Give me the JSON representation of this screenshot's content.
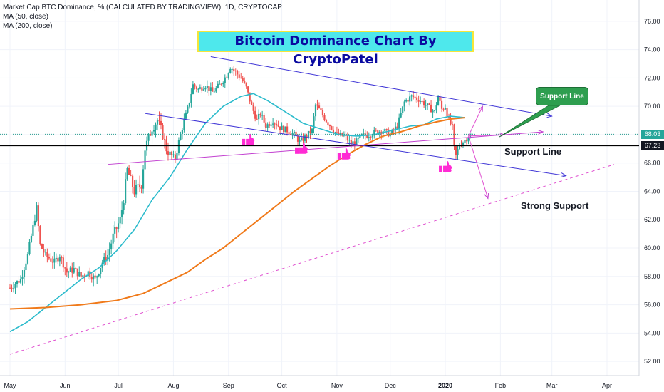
{
  "chart_data": {
    "type": "candlestick",
    "symbol_line": "Market Cap BTC Dominance, % (CALCULATED BY TRADINGVIEW), 1D, CRYPTOCAP",
    "indicators": [
      "MA (50, close)",
      "MA (200, close)"
    ],
    "title": "Bitcoin Dominance Chart By CryptoPatel",
    "ylim": [
      51,
      77.5
    ],
    "y_ticks": [
      "52.00",
      "54.00",
      "56.00",
      "58.00",
      "60.00",
      "62.00",
      "64.00",
      "66.00",
      "68.00",
      "70.00",
      "72.00",
      "74.00",
      "76.00"
    ],
    "x_ticks": [
      "May",
      "Jun",
      "Jul",
      "Aug",
      "Sep",
      "Oct",
      "Nov",
      "Dec",
      "2020",
      "Feb",
      "Mar",
      "Apr"
    ],
    "x_range_days": [
      0,
      340
    ],
    "x_tick_days": [
      0,
      31,
      61,
      92,
      123,
      153,
      184,
      214,
      245,
      276,
      305,
      336
    ],
    "price_path": [
      [
        0,
        57.2
      ],
      [
        6,
        57.8
      ],
      [
        10,
        59.5
      ],
      [
        13,
        61.5
      ],
      [
        15,
        62.8
      ],
      [
        17,
        60.2
      ],
      [
        20,
        59.5
      ],
      [
        25,
        59.0
      ],
      [
        28,
        59.5
      ],
      [
        32,
        58.3
      ],
      [
        36,
        58.5
      ],
      [
        40,
        58.0
      ],
      [
        44,
        58.3
      ],
      [
        48,
        57.8
      ],
      [
        52,
        59.0
      ],
      [
        55,
        59.5
      ],
      [
        58,
        60.8
      ],
      [
        62,
        62.0
      ],
      [
        64,
        63.5
      ],
      [
        66,
        65.5
      ],
      [
        70,
        64.0
      ],
      [
        74,
        64.5
      ],
      [
        76,
        67.0
      ],
      [
        80,
        68.5
      ],
      [
        83,
        69.0
      ],
      [
        86,
        68.0
      ],
      [
        88,
        67.0
      ],
      [
        91,
        66.5
      ],
      [
        93,
        66.3
      ],
      [
        95,
        67.5
      ],
      [
        98,
        69.0
      ],
      [
        100,
        69.8
      ],
      [
        103,
        71.5
      ],
      [
        106,
        71.2
      ],
      [
        110,
        71.5
      ],
      [
        114,
        71.0
      ],
      [
        118,
        71.5
      ],
      [
        122,
        72.2
      ],
      [
        124,
        72.8
      ],
      [
        127,
        72.4
      ],
      [
        130,
        72.0
      ],
      [
        133,
        71.3
      ],
      [
        136,
        70.0
      ],
      [
        139,
        69.0
      ],
      [
        141,
        69.5
      ],
      [
        144,
        68.6
      ],
      [
        148,
        69.0
      ],
      [
        152,
        68.5
      ],
      [
        156,
        68.3
      ],
      [
        160,
        68.0
      ],
      [
        163,
        67.5
      ],
      [
        166,
        67.8
      ],
      [
        170,
        68.3
      ],
      [
        172,
        70.1
      ],
      [
        175,
        69.6
      ],
      [
        178,
        69.0
      ],
      [
        181,
        68.5
      ],
      [
        184,
        68.0
      ],
      [
        188,
        67.9
      ],
      [
        192,
        67.4
      ],
      [
        195,
        67.5
      ],
      [
        198,
        67.9
      ],
      [
        202,
        68.0
      ],
      [
        206,
        68.2
      ],
      [
        210,
        68.3
      ],
      [
        214,
        68.0
      ],
      [
        218,
        68.6
      ],
      [
        222,
        70.3
      ],
      [
        226,
        70.7
      ],
      [
        230,
        70.5
      ],
      [
        233,
        70.2
      ],
      [
        236,
        69.9
      ],
      [
        239,
        69.6
      ],
      [
        241,
        70.7
      ],
      [
        243,
        69.8
      ],
      [
        245,
        70.0
      ],
      [
        247,
        69.0
      ],
      [
        249,
        68.5
      ],
      [
        250,
        67.0
      ],
      [
        251,
        66.5
      ],
      [
        253,
        67.3
      ],
      [
        256,
        67.6
      ],
      [
        258,
        67.9
      ],
      [
        260,
        68.0
      ]
    ],
    "price_rng": [
      0.5,
      57.5,
      89.5,
      60.0
    ],
    "ma50": [
      [
        0,
        54.1
      ],
      [
        10,
        54.8
      ],
      [
        20,
        55.8
      ],
      [
        30,
        56.8
      ],
      [
        40,
        57.8
      ],
      [
        50,
        58.6
      ],
      [
        60,
        59.8
      ],
      [
        70,
        61.3
      ],
      [
        80,
        63.4
      ],
      [
        90,
        65.0
      ],
      [
        100,
        67.0
      ],
      [
        110,
        68.8
      ],
      [
        120,
        70.0
      ],
      [
        130,
        70.7
      ],
      [
        137,
        70.9
      ],
      [
        145,
        70.4
      ],
      [
        155,
        69.6
      ],
      [
        165,
        68.8
      ],
      [
        175,
        68.4
      ],
      [
        185,
        68.0
      ],
      [
        195,
        67.9
      ],
      [
        205,
        68.0
      ],
      [
        215,
        68.3
      ],
      [
        225,
        68.6
      ],
      [
        233,
        68.7
      ],
      [
        240,
        69.1
      ],
      [
        248,
        69.3
      ],
      [
        256,
        69.2
      ]
    ],
    "ma200": [
      [
        0,
        55.7
      ],
      [
        20,
        55.8
      ],
      [
        40,
        56.0
      ],
      [
        60,
        56.3
      ],
      [
        75,
        56.8
      ],
      [
        90,
        57.7
      ],
      [
        100,
        58.3
      ],
      [
        110,
        59.2
      ],
      [
        120,
        60.0
      ],
      [
        130,
        61.0
      ],
      [
        140,
        62.0
      ],
      [
        150,
        63.0
      ],
      [
        160,
        64.0
      ],
      [
        170,
        64.9
      ],
      [
        180,
        65.8
      ],
      [
        190,
        66.6
      ],
      [
        200,
        67.3
      ],
      [
        210,
        67.9
      ],
      [
        220,
        68.2
      ],
      [
        230,
        68.6
      ],
      [
        240,
        68.9
      ],
      [
        248,
        69.1
      ],
      [
        256,
        69.2
      ]
    ],
    "trendlines": [
      {
        "name": "upper-channel",
        "from": [
          113,
          73.5
        ],
        "to": [
          305,
          69.3
        ],
        "color": "#3f35d6",
        "style": "solid",
        "arrow": true
      },
      {
        "name": "lower-channel",
        "from": [
          76,
          69.5
        ],
        "to": [
          313,
          65.1
        ],
        "color": "#3f35d6",
        "style": "solid",
        "arrow": true
      },
      {
        "name": "rising-support",
        "from": [
          55,
          65.9
        ],
        "to": [
          300,
          68.2
        ],
        "color": "#c240d0",
        "style": "solid",
        "arrow": true
      },
      {
        "name": "long-term-support",
        "from": [
          0,
          52.5
        ],
        "to": [
          340,
          65.9
        ],
        "color": "#e050d0",
        "style": "dashed",
        "arrow": false
      }
    ],
    "horizontal_lines": [
      {
        "name": "black-support",
        "y": 67.23,
        "color": "#000000"
      },
      {
        "name": "dotted-last-price",
        "y": 68.03,
        "color": "#2a9d8f"
      }
    ],
    "projection_arrows": [
      {
        "from": [
          258,
          67.9
        ],
        "to": [
          266,
          70.0
        ]
      },
      {
        "from": [
          258,
          67.9
        ],
        "to": [
          278,
          68.0
        ]
      },
      {
        "from": [
          258,
          67.9
        ],
        "to": [
          269,
          63.5
        ]
      }
    ],
    "thumbs": [
      [
        134,
        67.6
      ],
      [
        164,
        67.0
      ],
      [
        188,
        66.6
      ],
      [
        245,
        65.7
      ]
    ],
    "labels": {
      "support_line_callout": "Support Line",
      "support_line_text": "Support Line",
      "strong_support_text": "Strong Support"
    },
    "price_tags": [
      {
        "text": "68.03",
        "value": 68.03,
        "color": "#26a69a"
      },
      {
        "text": "67.23",
        "value": 67.23,
        "color": "#131722"
      }
    ],
    "colors": {
      "up": "#26a69a",
      "down": "#ef5350",
      "ma50": "#2bbbcc",
      "ma200": "#f07a1a",
      "grid": "#f0f3fa",
      "thumb": "#ff2bd4"
    }
  }
}
